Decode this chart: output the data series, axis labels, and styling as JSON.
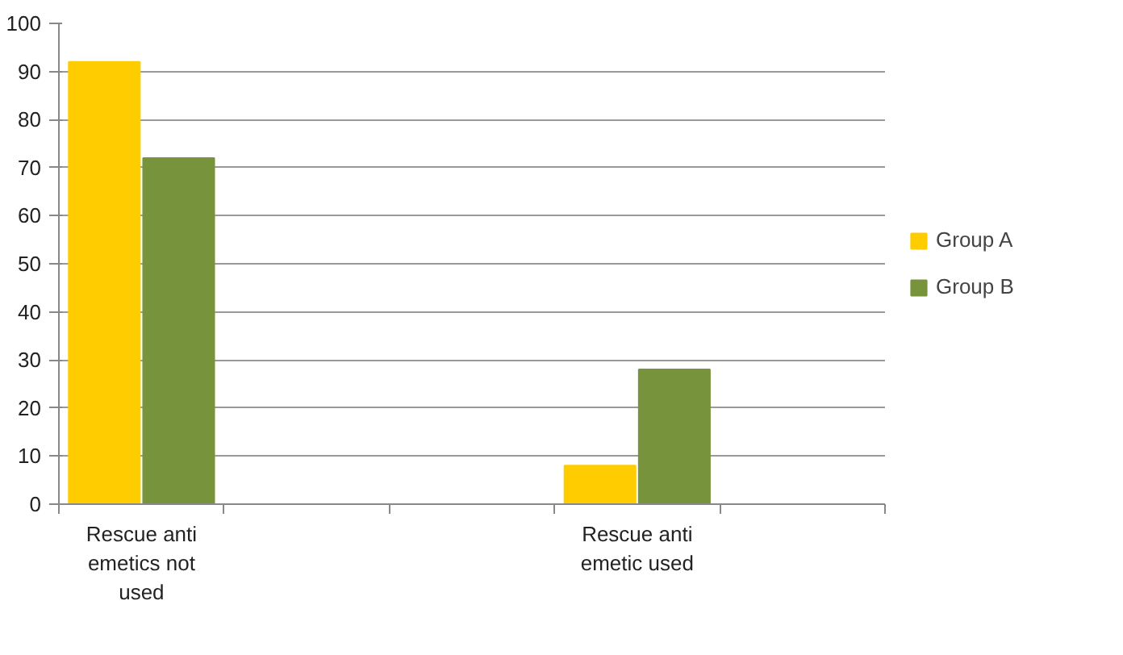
{
  "chart_data": {
    "type": "bar",
    "categories": [
      "Rescue anti emetics not used",
      null,
      null,
      "Rescue anti emetic used",
      null
    ],
    "series": [
      {
        "name": "Group A",
        "color": "#ffcc00",
        "values": [
          92,
          null,
          null,
          8,
          null
        ]
      },
      {
        "name": "Group B",
        "color": "#77933c",
        "values": [
          72,
          null,
          null,
          28,
          null
        ]
      }
    ],
    "ylim": [
      0,
      100
    ],
    "yticks": [
      0,
      10,
      20,
      30,
      40,
      50,
      60,
      70,
      80,
      90,
      100
    ],
    "grid": "y",
    "legend": "right"
  }
}
